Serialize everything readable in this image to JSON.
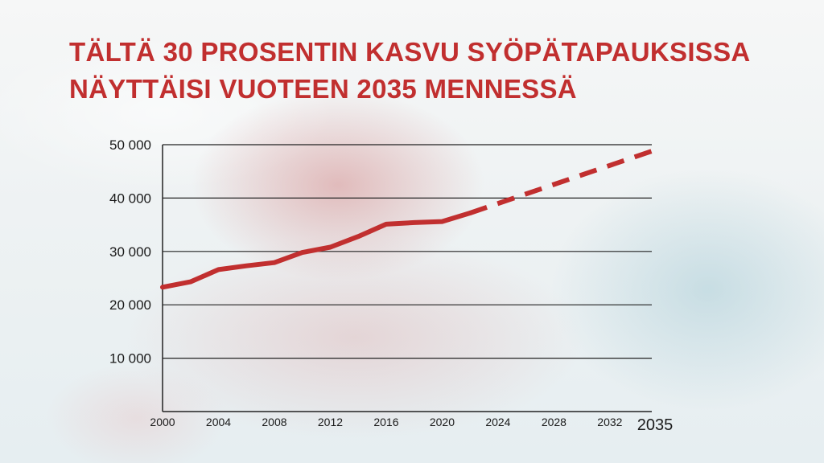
{
  "title_lines": [
    "Tältä 30 prosentin kasvu syöpätapauksissa",
    "näyttäisi vuoteen 2035 mennessä"
  ],
  "colors": {
    "title": "#c12f2f",
    "line": "#c12f2f",
    "grid": "#222222"
  },
  "chart_data": {
    "type": "line",
    "title": "Tältä 30 prosentin kasvu syöpätapauksissa näyttäisi vuoteen 2035 mennessä",
    "xlabel": "",
    "ylabel": "",
    "xlim": [
      2000,
      2035
    ],
    "ylim": [
      0,
      50000
    ],
    "grid": true,
    "legend": "none",
    "x_ticks": [
      "2000",
      "2004",
      "2008",
      "2012",
      "2016",
      "2020",
      "2024",
      "2028",
      "2032",
      "2035"
    ],
    "y_ticks": [
      "10 000",
      "20 000",
      "30 000",
      "40 000",
      "50 000"
    ],
    "y_tick_values": [
      10000,
      20000,
      30000,
      40000,
      50000
    ],
    "series": [
      {
        "style": "solid",
        "x": [
          2000,
          2002,
          2004,
          2006,
          2008,
          2010,
          2012,
          2014,
          2016,
          2018,
          2020,
          2022
        ],
        "y": [
          23300,
          24300,
          26600,
          27300,
          27900,
          29800,
          30800,
          32800,
          35100,
          35400,
          35600,
          37200
        ]
      },
      {
        "style": "dashed",
        "x": [
          2022,
          2035
        ],
        "y": [
          37200,
          48800
        ]
      }
    ]
  }
}
